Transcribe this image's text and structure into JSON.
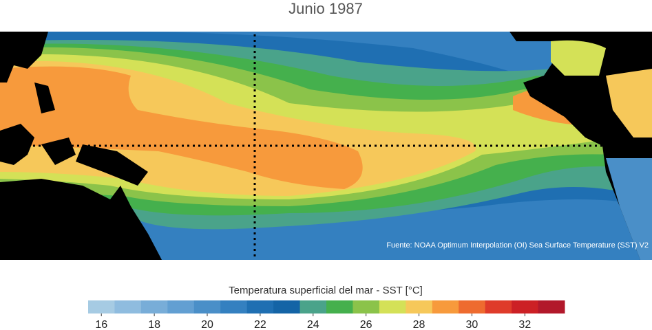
{
  "title": "Junio 1987",
  "source": "Fuente: NOAA Optimum Interpolation (OI) Sea Surface Temperature (SST) V2",
  "colorbar": {
    "label": "Temperatura superficial del mar - SST  [°C]",
    "range": [
      15.5,
      33.5
    ],
    "ticks": [
      16,
      18,
      20,
      22,
      24,
      26,
      28,
      30,
      32
    ],
    "colors": [
      "#a6cbe3",
      "#8fbcdf",
      "#78add8",
      "#629fd2",
      "#4a8fc8",
      "#3480c0",
      "#1f6fb2",
      "#1464a6",
      "#4aa38a",
      "#45b04d",
      "#8bc34a",
      "#d4e157",
      "#f6c85a",
      "#f79a3c",
      "#ee6b2f",
      "#df3b2a",
      "#cc2025",
      "#b2182b"
    ]
  }
}
